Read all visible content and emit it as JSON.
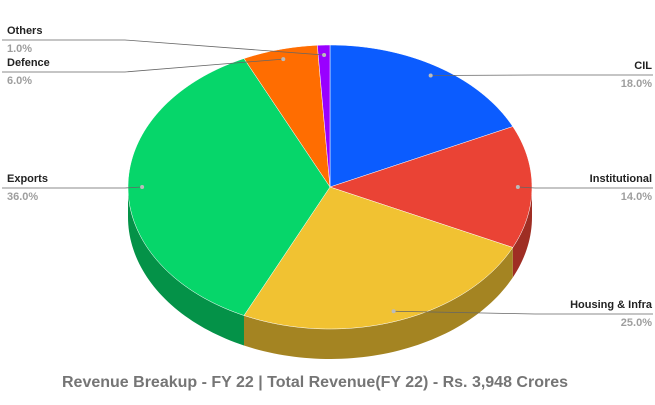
{
  "chart_data": {
    "type": "pie3d",
    "title": "Revenue Breakup - FY 22 | Total Revenue(FY 22) - Rs. 3,948 Crores",
    "categories": [
      "CIL",
      "Institutional",
      "Housing & Infra",
      "Exports",
      "Defence",
      "Others"
    ],
    "values": [
      18.0,
      14.0,
      25.0,
      36.0,
      6.0,
      1.0
    ],
    "value_labels": [
      "18.0%",
      "14.0%",
      "25.0%",
      "36.0%",
      "6.0%",
      "1.0%"
    ],
    "colors": [
      "#0b5cff",
      "#ea4335",
      "#f1c232",
      "#06d66a",
      "#ff6d01",
      "#9900ff"
    ]
  }
}
